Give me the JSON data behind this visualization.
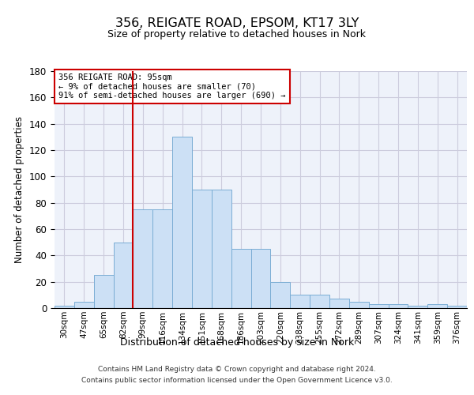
{
  "title": "356, REIGATE ROAD, EPSOM, KT17 3LY",
  "subtitle": "Size of property relative to detached houses in Nork",
  "xlabel": "Distribution of detached houses by size in Nork",
  "ylabel": "Number of detached properties",
  "bar_color": "#cce0f5",
  "bar_edge_color": "#7aadd4",
  "categories": [
    "30sqm",
    "47sqm",
    "65sqm",
    "82sqm",
    "99sqm",
    "116sqm",
    "134sqm",
    "151sqm",
    "168sqm",
    "186sqm",
    "203sqm",
    "220sqm",
    "238sqm",
    "255sqm",
    "272sqm",
    "289sqm",
    "307sqm",
    "324sqm",
    "341sqm",
    "359sqm",
    "376sqm"
  ],
  "values": [
    2,
    5,
    25,
    50,
    75,
    75,
    130,
    90,
    90,
    45,
    45,
    20,
    10,
    10,
    7,
    5,
    3,
    3,
    2,
    3,
    2
  ],
  "red_line_x": 3.5,
  "annotation_line1": "356 REIGATE ROAD: 95sqm",
  "annotation_line2": "← 9% of detached houses are smaller (70)",
  "annotation_line3": "91% of semi-detached houses are larger (690) →",
  "annotation_box_color": "#ffffff",
  "annotation_box_edge_color": "#cc0000",
  "red_line_color": "#cc0000",
  "ylim": [
    0,
    180
  ],
  "yticks": [
    0,
    20,
    40,
    60,
    80,
    100,
    120,
    140,
    160,
    180
  ],
  "grid_color": "#ccccdd",
  "background_color": "#eef2fa",
  "footer1": "Contains HM Land Registry data © Crown copyright and database right 2024.",
  "footer2": "Contains public sector information licensed under the Open Government Licence v3.0."
}
